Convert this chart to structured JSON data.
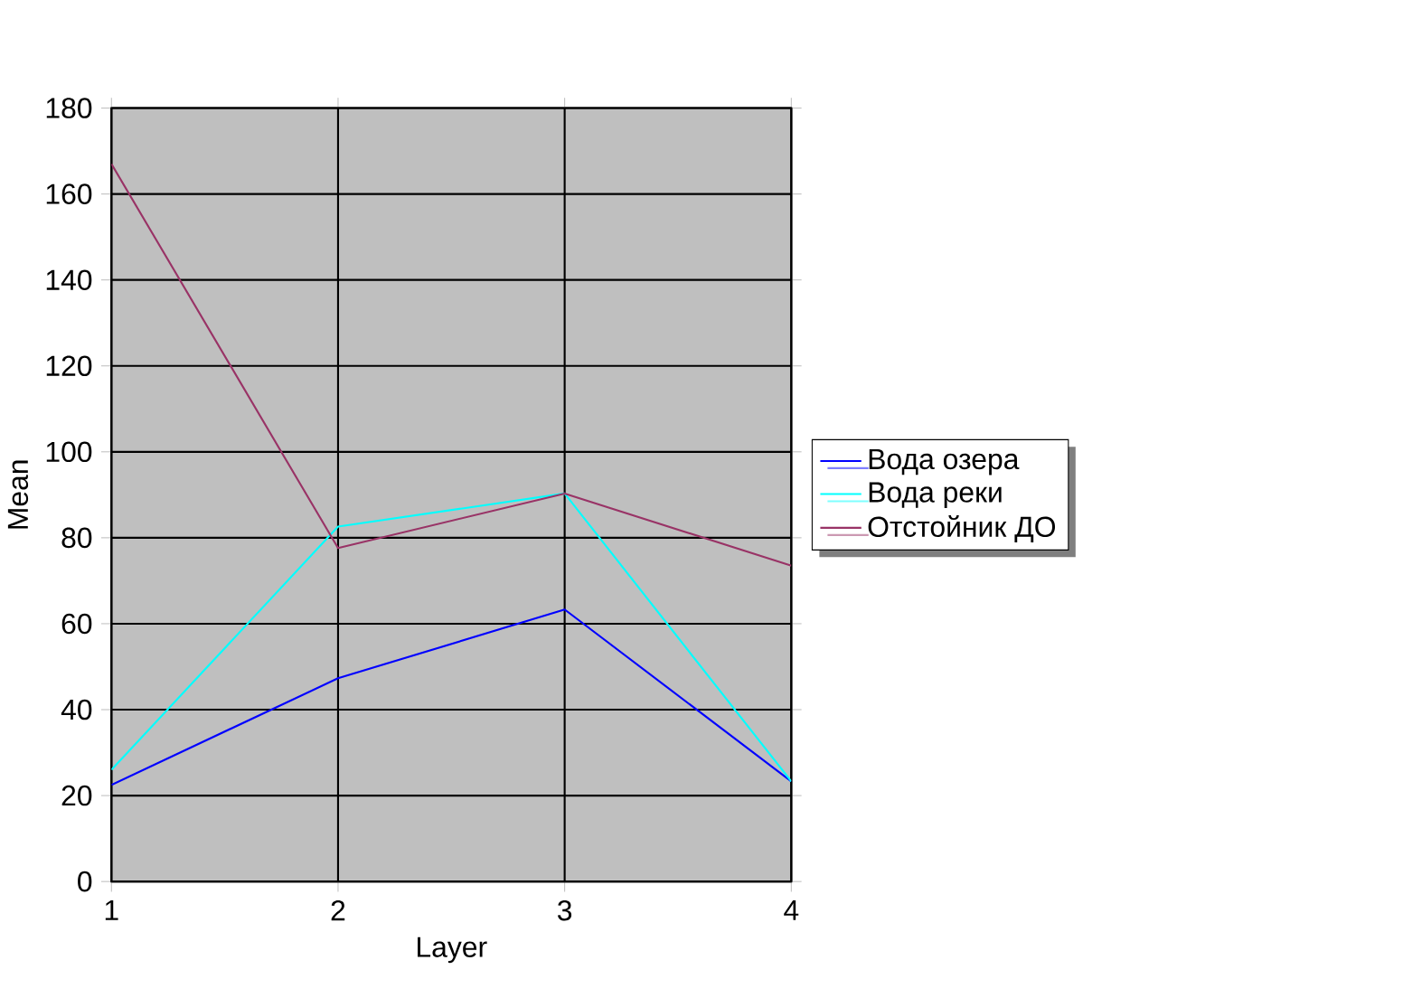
{
  "chart_data": {
    "type": "line",
    "xlabel": "Layer",
    "ylabel": "Mean",
    "x": [
      1,
      2,
      3,
      4
    ],
    "xlim": [
      1,
      4
    ],
    "xticks": [
      1,
      2,
      3,
      4
    ],
    "ylim": [
      0,
      180
    ],
    "yticks": [
      0,
      20,
      40,
      60,
      80,
      100,
      120,
      140,
      160,
      180
    ],
    "grid": true,
    "legend": "right",
    "marker": "none",
    "line_style": "solid",
    "series": [
      {
        "name": "Вода озера",
        "color": "#0000ff",
        "values": [
          22.5,
          47.3,
          63.3,
          23.3
        ]
      },
      {
        "name": "Вода реки",
        "color": "#00ffff",
        "values": [
          26,
          82.6,
          90.3,
          23.3
        ]
      },
      {
        "name": "Отстойник ДО",
        "color": "#993366",
        "values": [
          167,
          77.6,
          90.3,
          73.5
        ]
      }
    ]
  }
}
